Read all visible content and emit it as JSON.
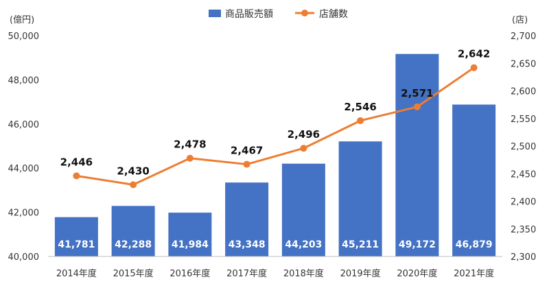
{
  "chart_data": {
    "type": "bar+line",
    "categories": [
      "2014年度",
      "2015年度",
      "2016年度",
      "2017年度",
      "2018年度",
      "2019年度",
      "2020年度",
      "2021年度"
    ],
    "series": [
      {
        "name": "商品販売額",
        "type": "bar",
        "axis": "left",
        "color": "#4472C4",
        "values": [
          41781,
          42288,
          41984,
          43348,
          44203,
          45211,
          49172,
          46879
        ],
        "labels": [
          "41,781",
          "42,288",
          "41,984",
          "43,348",
          "44,203",
          "45,211",
          "49,172",
          "46,879"
        ]
      },
      {
        "name": "店舗数",
        "type": "line",
        "axis": "right",
        "color": "#ED7D31",
        "values": [
          2446,
          2430,
          2478,
          2467,
          2496,
          2546,
          2571,
          2642
        ],
        "labels": [
          "2,446",
          "2,430",
          "2,478",
          "2,467",
          "2,496",
          "2,546",
          "2,571",
          "2,642"
        ]
      }
    ],
    "y_left": {
      "unit": "(億円)",
      "ylim": [
        40000,
        50000
      ],
      "ticks": [
        40000,
        42000,
        44000,
        46000,
        48000,
        50000
      ],
      "tick_labels": [
        "40,000",
        "42,000",
        "44,000",
        "46,000",
        "48,000",
        "50,000"
      ]
    },
    "y_right": {
      "unit": "(店)",
      "ylim": [
        2300,
        2700
      ],
      "ticks": [
        2300,
        2350,
        2400,
        2450,
        2500,
        2550,
        2600,
        2650,
        2700
      ],
      "tick_labels": [
        "2,300",
        "2,350",
        "2,400",
        "2,450",
        "2,500",
        "2,550",
        "2,600",
        "2,650",
        "2,700"
      ]
    },
    "legend": {
      "position": "top-center"
    },
    "grid": false
  }
}
